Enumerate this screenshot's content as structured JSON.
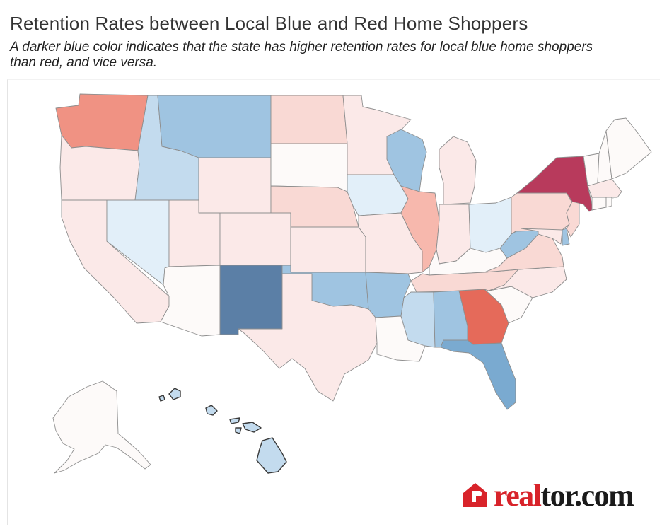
{
  "title": "Retention Rates between Local Blue and Red Home Shoppers",
  "subtitle": "A darker blue color indicates that the state has higher retention rates for local blue home shoppers than red,  and vice versa.",
  "logo": {
    "accent": "real",
    "rest": "tor.com",
    "icon": "house-icon",
    "color": "#d8232a"
  },
  "scale": {
    "strong_blue": "#5b7fa6",
    "blue": "#7aaad0",
    "light_blue": "#9fc4e1",
    "pale_blue": "#c3dbee",
    "faint_blue": "#e2eff9",
    "neutral": "#fdfaf9",
    "faint_red": "#fbe9e8",
    "pale_red": "#f9d9d4",
    "light_red": "#f7b8ad",
    "red": "#f09283",
    "orange_red": "#e56a5a",
    "dark_red": "#b83a5c"
  },
  "states": {
    "WA": "red",
    "OR": "faint_red",
    "CA": "faint_red",
    "NV": "faint_blue",
    "ID": "pale_blue",
    "MT": "light_blue",
    "WY": "faint_red",
    "UT": "faint_red",
    "AZ": "neutral",
    "CO": "faint_red",
    "NM": "strong_blue",
    "ND": "pale_red",
    "SD": "neutral",
    "NE": "pale_red",
    "KS": "faint_red",
    "OK": "light_blue",
    "TX": "faint_red",
    "MN": "faint_red",
    "IA": "faint_blue",
    "MO": "faint_red",
    "AR": "light_blue",
    "LA": "neutral",
    "WI": "light_blue",
    "IL": "light_red",
    "MI": "faint_red",
    "IN": "faint_red",
    "OH": "faint_blue",
    "KY": "neutral",
    "TN": "pale_red",
    "MS": "pale_blue",
    "AL": "light_blue",
    "GA": "orange_red",
    "FL": "blue",
    "SC": "neutral",
    "NC": "faint_red",
    "VA": "pale_red",
    "WV": "light_blue",
    "PA": "pale_red",
    "NY": "dark_red",
    "VT": "neutral",
    "NH": "neutral",
    "ME": "neutral",
    "MA": "faint_red",
    "CT": "neutral",
    "RI": "neutral",
    "NJ": "pale_red",
    "DE": "light_blue",
    "MD": "faint_red",
    "AK": "neutral",
    "HI": "pale_blue"
  }
}
